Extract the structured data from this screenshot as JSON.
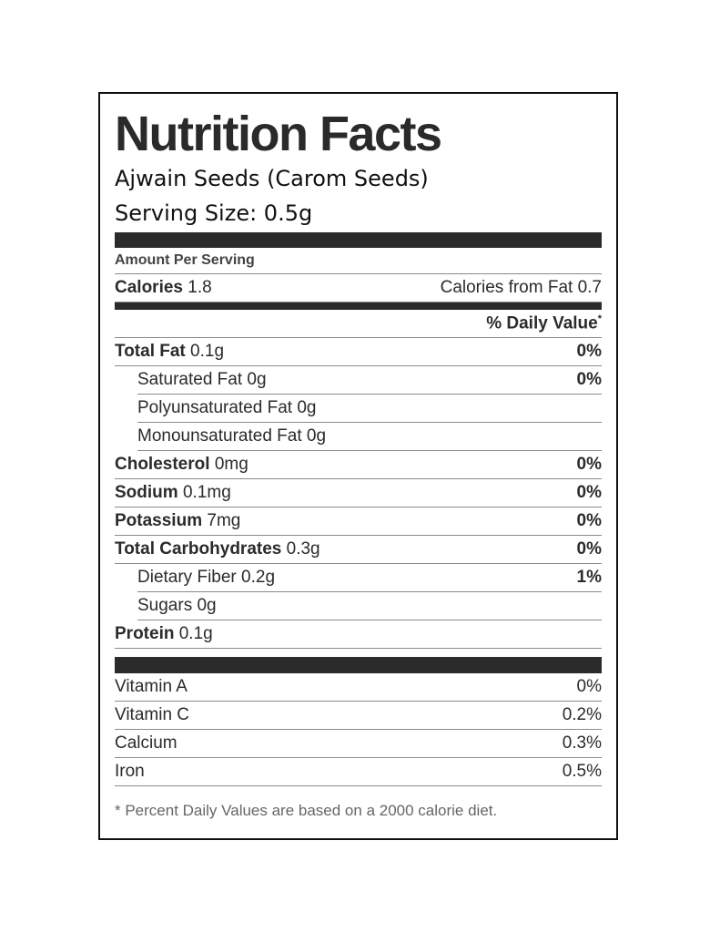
{
  "title": "Nutrition Facts",
  "product": "Ajwain Seeds (Carom Seeds)",
  "serving_size": "Serving Size: 0.5g",
  "amount_per_serving": "Amount Per Serving",
  "calories": {
    "label": "Calories",
    "amount": "1.8"
  },
  "calories_from_fat": "Calories from Fat 0.7",
  "daily_value_header": "% Daily Value",
  "daily_value_mark": "*",
  "nutrients": [
    {
      "label": "Total Fat",
      "amount": "0.1g",
      "dv": "0%",
      "sub": [
        {
          "label": "Saturated Fat 0g",
          "dv": "0%"
        },
        {
          "label": "Polyunsaturated Fat 0g"
        },
        {
          "label": "Monounsaturated Fat 0g"
        }
      ]
    },
    {
      "label": "Cholesterol",
      "amount": "0mg",
      "dv": "0%"
    },
    {
      "label": "Sodium",
      "amount": "0.1mg",
      "dv": "0%"
    },
    {
      "label": "Potassium",
      "amount": "7mg",
      "dv": "0%"
    },
    {
      "label": "Total Carbohydrates",
      "amount": "0.3g",
      "dv": "0%",
      "sub": [
        {
          "label": "Dietary Fiber 0.2g",
          "dv": "1%"
        },
        {
          "label": "Sugars 0g"
        }
      ]
    },
    {
      "label": "Protein",
      "amount": "0.1g"
    }
  ],
  "vitamins": [
    {
      "label": "Vitamin A",
      "value": "0%"
    },
    {
      "label": "Vitamin C",
      "value": "0.2%"
    },
    {
      "label": "Calcium",
      "value": "0.3%"
    },
    {
      "label": "Iron",
      "value": "0.5%"
    }
  ],
  "footnote": "* Percent Daily Values are based on a 2000 calorie diet."
}
